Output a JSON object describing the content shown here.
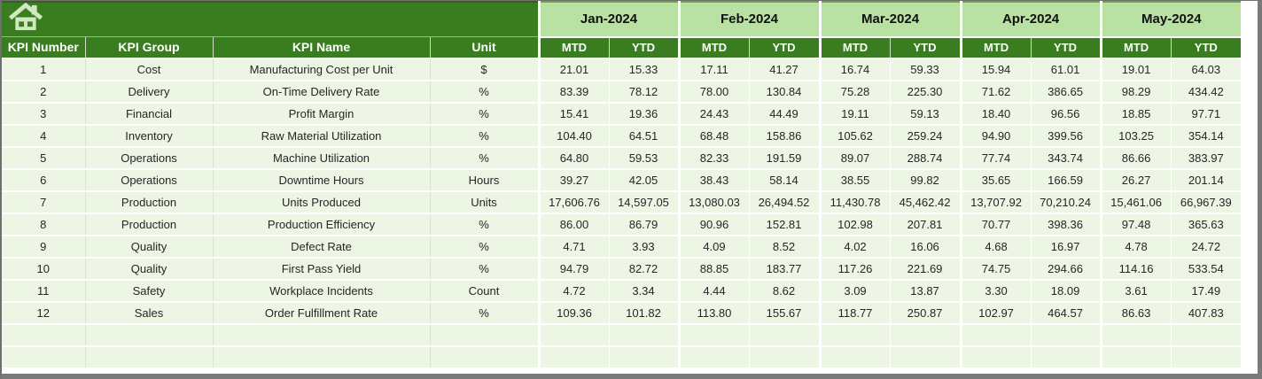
{
  "colors": {
    "header_green": "#3A7D21",
    "month_banner_green": "#B9E1A4",
    "row_green": "#EDF5E5",
    "grid_white": "#FFFFFF",
    "header_text": "#FFFFFF",
    "body_text": "#262626",
    "frame_gray": "#7A7A7A",
    "home_icon_fill": "#CFE9C0"
  },
  "icons": {
    "home": "home-icon"
  },
  "headers": {
    "fixed": [
      "KPI Number",
      "KPI Group",
      "KPI Name",
      "Unit"
    ],
    "months": [
      "Jan-2024",
      "Feb-2024",
      "Mar-2024",
      "Apr-2024",
      "May-2024"
    ],
    "sub": [
      "MTD",
      "YTD"
    ]
  },
  "rows": [
    {
      "number": "1",
      "group": "Cost",
      "name": "Manufacturing Cost per Unit",
      "unit": "$",
      "values": [
        "21.01",
        "15.33",
        "17.11",
        "41.27",
        "16.74",
        "59.33",
        "15.94",
        "61.01",
        "19.01",
        "64.03"
      ]
    },
    {
      "number": "2",
      "group": "Delivery",
      "name": "On-Time Delivery Rate",
      "unit": "%",
      "values": [
        "83.39",
        "78.12",
        "78.00",
        "130.84",
        "75.28",
        "225.30",
        "71.62",
        "386.65",
        "98.29",
        "434.42"
      ]
    },
    {
      "number": "3",
      "group": "Financial",
      "name": "Profit Margin",
      "unit": "%",
      "values": [
        "15.41",
        "19.36",
        "24.43",
        "44.49",
        "19.11",
        "59.13",
        "18.40",
        "96.56",
        "18.85",
        "97.71"
      ]
    },
    {
      "number": "4",
      "group": "Inventory",
      "name": "Raw Material Utilization",
      "unit": "%",
      "values": [
        "104.40",
        "64.51",
        "68.48",
        "158.86",
        "105.62",
        "259.24",
        "94.90",
        "399.56",
        "103.25",
        "354.14"
      ]
    },
    {
      "number": "5",
      "group": "Operations",
      "name": "Machine Utilization",
      "unit": "%",
      "values": [
        "64.80",
        "59.53",
        "82.33",
        "191.59",
        "89.07",
        "288.74",
        "77.74",
        "343.74",
        "86.66",
        "383.97"
      ]
    },
    {
      "number": "6",
      "group": "Operations",
      "name": "Downtime Hours",
      "unit": "Hours",
      "values": [
        "39.27",
        "42.05",
        "38.43",
        "58.14",
        "38.55",
        "99.82",
        "35.65",
        "166.59",
        "26.27",
        "201.14"
      ]
    },
    {
      "number": "7",
      "group": "Production",
      "name": "Units Produced",
      "unit": "Units",
      "values": [
        "17,606.76",
        "14,597.05",
        "13,080.03",
        "26,494.52",
        "11,430.78",
        "45,462.42",
        "13,707.92",
        "70,210.24",
        "15,461.06",
        "66,967.39"
      ]
    },
    {
      "number": "8",
      "group": "Production",
      "name": "Production Efficiency",
      "unit": "%",
      "values": [
        "86.00",
        "86.79",
        "90.96",
        "152.81",
        "102.98",
        "207.81",
        "70.77",
        "398.36",
        "97.48",
        "365.63"
      ]
    },
    {
      "number": "9",
      "group": "Quality",
      "name": "Defect Rate",
      "unit": "%",
      "values": [
        "4.71",
        "3.93",
        "4.09",
        "8.52",
        "4.02",
        "16.06",
        "4.68",
        "16.97",
        "4.78",
        "24.72"
      ]
    },
    {
      "number": "10",
      "group": "Quality",
      "name": "First Pass Yield",
      "unit": "%",
      "values": [
        "94.79",
        "82.72",
        "88.85",
        "183.77",
        "117.26",
        "221.69",
        "74.75",
        "294.66",
        "114.16",
        "533.54"
      ]
    },
    {
      "number": "11",
      "group": "Safety",
      "name": "Workplace Incidents",
      "unit": "Count",
      "values": [
        "4.72",
        "3.34",
        "4.44",
        "8.62",
        "3.09",
        "13.87",
        "3.30",
        "18.09",
        "3.61",
        "17.49"
      ]
    },
    {
      "number": "12",
      "group": "Sales",
      "name": "Order Fulfillment Rate",
      "unit": "%",
      "values": [
        "109.36",
        "101.82",
        "113.80",
        "155.67",
        "118.77",
        "250.87",
        "102.97",
        "464.57",
        "86.63",
        "407.83"
      ]
    }
  ],
  "empty_rows": 2
}
